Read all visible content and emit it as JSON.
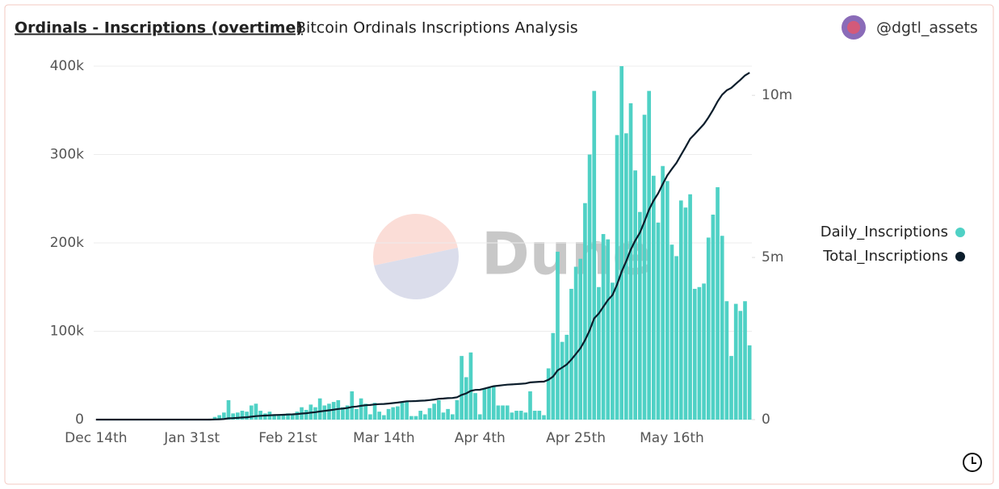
{
  "header": {
    "title": "Ordinals - Inscriptions (overtime)",
    "subtitle": "Bitcoin Ordinals Inscriptions Analysis",
    "author": "@dgtl_assets"
  },
  "watermark": "Dune",
  "chart_data": {
    "type": "bar-line",
    "categories": [
      "Dec 14th",
      null,
      null,
      null,
      null,
      null,
      null,
      null,
      null,
      null,
      null,
      null,
      null,
      null,
      null,
      null,
      null,
      null,
      null,
      null,
      null,
      "Jan 31st",
      null,
      null,
      null,
      null,
      null,
      null,
      null,
      null,
      null,
      null,
      null,
      null,
      null,
      null,
      null,
      null,
      null,
      null,
      null,
      null,
      "Feb 21st",
      null,
      null,
      null,
      null,
      null,
      null,
      null,
      null,
      null,
      null,
      null,
      null,
      null,
      null,
      null,
      null,
      null,
      null,
      null,
      null,
      "Mar 14th",
      null,
      null,
      null,
      null,
      null,
      null,
      null,
      null,
      null,
      null,
      null,
      null,
      null,
      null,
      null,
      null,
      null,
      null,
      null,
      null,
      "Apr 4th",
      null,
      null,
      null,
      null,
      null,
      null,
      null,
      null,
      null,
      null,
      null,
      null,
      null,
      null,
      null,
      null,
      null,
      null,
      null,
      null,
      "Apr 25th",
      null,
      null,
      null,
      null,
      null,
      null,
      null,
      null,
      null,
      null,
      null,
      null,
      null,
      null,
      null,
      null,
      null,
      null,
      null,
      null,
      "May 16th",
      null,
      null,
      null,
      null,
      null,
      null,
      null,
      null,
      null,
      null,
      null,
      null,
      null,
      null,
      null,
      null,
      null
    ],
    "series": [
      {
        "name": "Daily_Inscriptions",
        "color": "#4fd1c5",
        "values": [
          0,
          0,
          0,
          0,
          0,
          0,
          0,
          0,
          0,
          0,
          0,
          0,
          0,
          0,
          0,
          0,
          0,
          0,
          0,
          0,
          0,
          0,
          0,
          0,
          0,
          1000,
          3000,
          5000,
          8000,
          22000,
          7000,
          8000,
          10000,
          9000,
          16000,
          18000,
          10000,
          7000,
          9000,
          6000,
          6000,
          5000,
          7000,
          6000,
          9000,
          14000,
          11000,
          17000,
          14000,
          24000,
          16000,
          18000,
          20000,
          22000,
          14000,
          16000,
          32000,
          12000,
          24000,
          18000,
          6000,
          19000,
          9000,
          5000,
          12000,
          14000,
          15000,
          20000,
          20000,
          4000,
          4000,
          10000,
          6000,
          13000,
          18000,
          22000,
          8000,
          12000,
          6000,
          22000,
          72000,
          48000,
          76000,
          30000,
          6000,
          35000,
          36000,
          38000,
          16000,
          16000,
          16000,
          8000,
          10000,
          10000,
          8000,
          32000,
          10000,
          10000,
          5000,
          58000,
          98000,
          190000,
          88000,
          96000,
          148000,
          173000,
          182000,
          245000,
          300000,
          372000,
          150000,
          210000,
          204000,
          155000,
          322000,
          400000,
          324000,
          358000,
          282000,
          235000,
          345000,
          372000,
          276000,
          223000,
          287000,
          270000,
          198000,
          185000,
          248000,
          240000,
          255000,
          148000,
          150000,
          154000,
          206000,
          232000,
          263000,
          208000,
          134000,
          72000,
          131000,
          123000,
          134000,
          84000
        ]
      },
      {
        "name": "Total_Inscriptions",
        "color": "#0b1d2b",
        "axis": "y2",
        "values": [
          0,
          0,
          0,
          0,
          0,
          0,
          0,
          0,
          0,
          0,
          0,
          0,
          0,
          0,
          0,
          0,
          0,
          0,
          0,
          0,
          0,
          0,
          0,
          0,
          0,
          1000,
          4000,
          9000,
          17000,
          39000,
          46000,
          54000,
          64000,
          73000,
          89000,
          107000,
          117000,
          124000,
          133000,
          139000,
          145000,
          150000,
          157000,
          163000,
          172000,
          186000,
          197000,
          214000,
          228000,
          252000,
          268000,
          286000,
          306000,
          328000,
          342000,
          358000,
          390000,
          402000,
          426000,
          444000,
          450000,
          469000,
          478000,
          483000,
          495000,
          509000,
          524000,
          544000,
          564000,
          568000,
          572000,
          582000,
          588000,
          601000,
          619000,
          641000,
          649000,
          661000,
          667000,
          689000,
          761000,
          809000,
          885000,
          915000,
          921000,
          956000,
          992000,
          1030000,
          1046000,
          1062000,
          1078000,
          1086000,
          1096000,
          1106000,
          1114000,
          1146000,
          1156000,
          1166000,
          1171000,
          1229000,
          1327000,
          1517000,
          1605000,
          1701000,
          1849000,
          2022000,
          2204000,
          2449000,
          2749000,
          3121000,
          3271000,
          3481000,
          3685000,
          3840000,
          4162000,
          4562000,
          4886000,
          5244000,
          5526000,
          5761000,
          6106000,
          6478000,
          6754000,
          6977000,
          7264000,
          7534000,
          7732000,
          7917000,
          8165000,
          8405000,
          8660000,
          8808000,
          8958000,
          9112000,
          9318000,
          9550000,
          9813000,
          10021000,
          10155000,
          10227000,
          10358000,
          10481000,
          10615000,
          10699000
        ]
      }
    ],
    "ylim": [
      0,
      400000
    ],
    "yticks": [
      0,
      {
        "value": 100000,
        "label": "100k"
      },
      {
        "value": 200000,
        "label": "200k"
      },
      {
        "value": 300000,
        "label": "300k"
      },
      {
        "value": 400000,
        "label": "400k"
      }
    ],
    "y2lim": [
      0,
      10900000
    ],
    "y2ticks": [
      0,
      {
        "value": 5000000,
        "label": "5m"
      },
      {
        "value": 10000000,
        "label": "10m"
      }
    ],
    "grid": true,
    "legend": "right"
  }
}
